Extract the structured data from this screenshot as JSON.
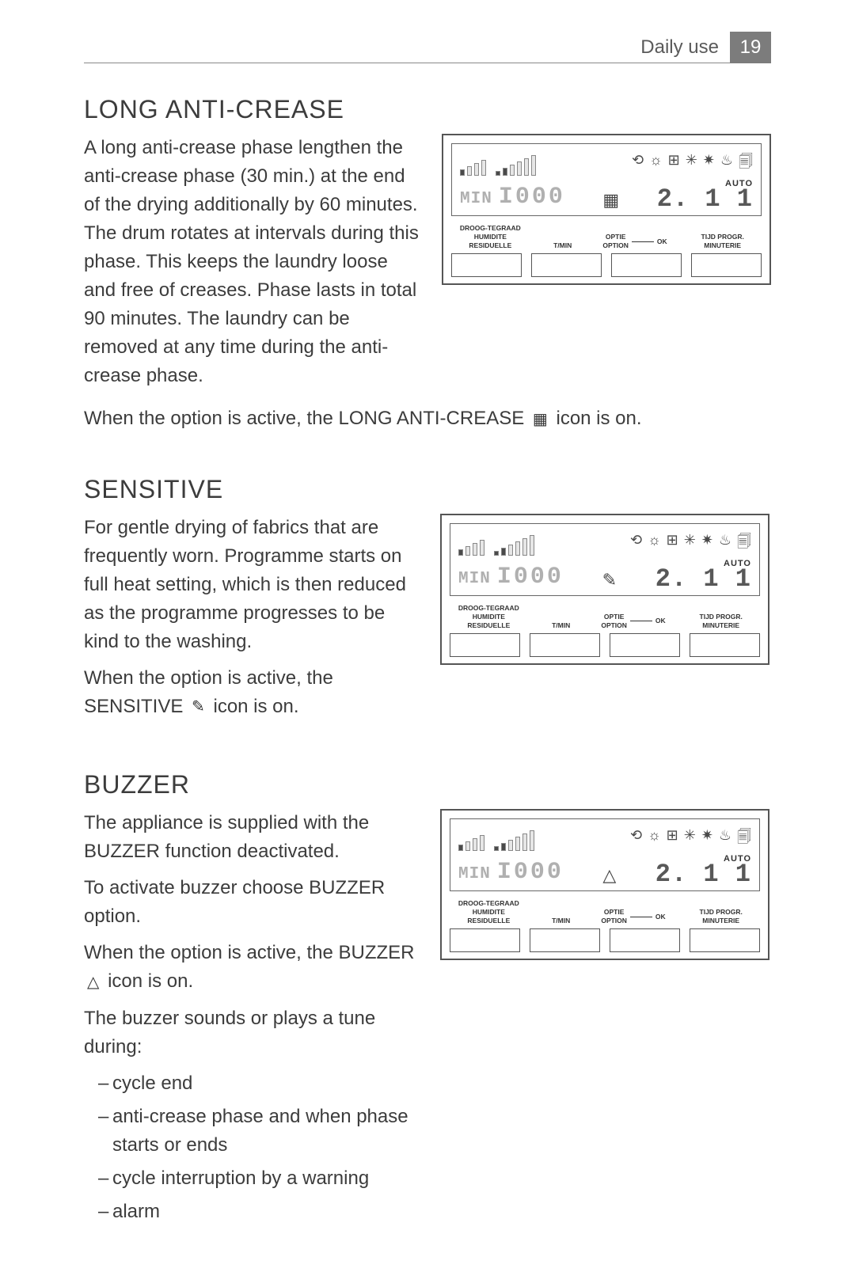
{
  "header": {
    "title": "Daily use",
    "page_number": "19"
  },
  "display_panel": {
    "min_label": "MIN",
    "min_value": "I000",
    "auto_label": "AUTO",
    "time_value": "2. 1 1",
    "icon_strip": [
      "⟲",
      "☼",
      "⊞",
      "✳",
      "✷",
      "♨",
      "🗐"
    ],
    "labels": {
      "col1_l1": "DROOG-TEGRAAD",
      "col1_l2": "HUMIDITE",
      "col1_l3": "RESIDUELLE",
      "col2": "T/MIN",
      "col3_l1": "OPTIE",
      "col3_l2": "OPTION",
      "ok": "OK",
      "col4_l1": "TIJD PROGR.",
      "col4_l2": "MINUTERIE"
    }
  },
  "sections": {
    "anticrease": {
      "title": "LONG ANTI-CREASE",
      "p1": "A long anti-crease phase lengthen the anti-crease phase (30 min.) at the end of the drying additionally by 60 minutes. The drum rotates at intervals during this phase. This keeps the laundry loose and free of creases. Phase lasts in total 90 minutes. The laundry can be removed at any time during the anti-crease phase.",
      "p2a": "When the option is active, the LONG ANTI-CREASE ",
      "p2b": " icon is on.",
      "option_glyph": "▦"
    },
    "sensitive": {
      "title": "SENSITIVE",
      "p1": "For gentle drying of fabrics that are frequently worn. Programme starts on full heat setting, which is then reduced as the programme progresses to be kind to the washing.",
      "p2a": "When the option is active, the SENSITIVE ",
      "p2b": " icon is on.",
      "option_glyph": "✎"
    },
    "buzzer": {
      "title": "BUZZER",
      "p1": "The appliance is supplied with the BUZZER function deactivated.",
      "p2": "To activate buzzer choose BUZZER option.",
      "p3a": "When the option is active, the BUZZER ",
      "p3b": " icon is on.",
      "p4": "The buzzer sounds or plays a tune during:",
      "li1": "cycle end",
      "li2": "anti-crease phase and when phase starts or ends",
      "li3": "cycle interruption by a warning",
      "li4": "alarm",
      "option_glyph": "△"
    }
  }
}
